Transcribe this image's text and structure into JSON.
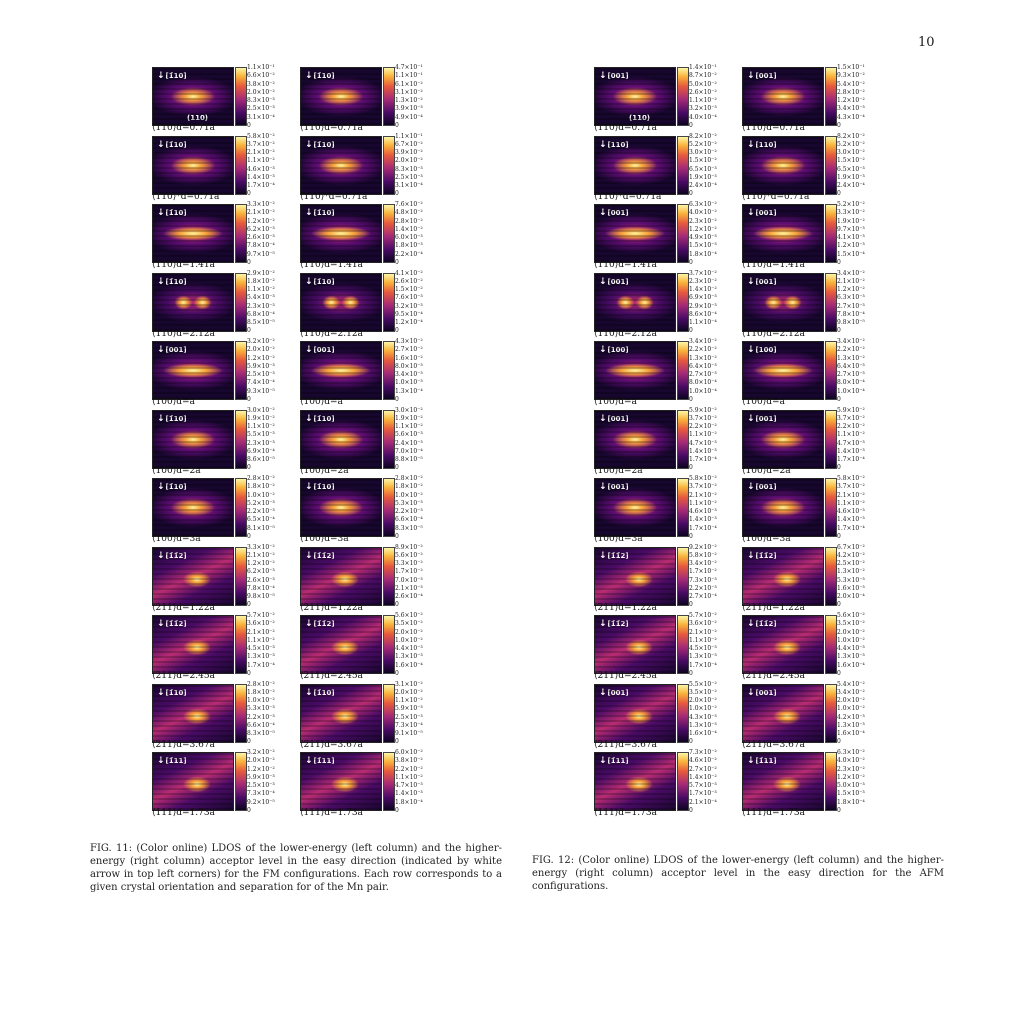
{
  "page_number": "10",
  "fig11": {
    "caption": "FIG. 11: (Color online) LDOS of the lower-energy (left column) and the higher-energy (right column) acceptor level in the easy direction (indicated by white arrow in top left corners) for the FM configurations. Each row corresponds to a given crystal orientation and separation for of the Mn pair.",
    "rows": [
      {
        "left": {
          "dir": "[1̄10]",
          "extra": "[001] [1̄10]",
          "plane": "(110)",
          "caption": "⟨110⟩d=0.71a",
          "ticks": [
            "1.1×10⁻¹",
            "6.6×10⁻²",
            "3.8×10⁻²",
            "2.0×10⁻²",
            "8.3×10⁻³",
            "2.5×10⁻³",
            "3.1×10⁻⁴",
            "0"
          ]
        },
        "right": {
          "dir": "[1̄10]",
          "caption": "⟨110⟩d=0.71a",
          "ticks": [
            "4.7×10⁻¹",
            "1.1×10⁻¹",
            "6.1×10⁻²",
            "3.1×10⁻²",
            "1.3×10⁻²",
            "3.9×10⁻³",
            "4.9×10⁻⁴",
            "0"
          ]
        }
      },
      {
        "left": {
          "dir": "[1̄10]",
          "caption": "⟨110⟩*d=0.71a",
          "ticks": [
            "5.8×10⁻²",
            "3.7×10⁻²",
            "2.1×10⁻²",
            "1.1×10⁻²",
            "4.6×10⁻³",
            "1.4×10⁻³",
            "1.7×10⁻⁴",
            "0"
          ]
        },
        "right": {
          "dir": "[1̄10]",
          "caption": "⟨110⟩*d=0.71a",
          "ticks": [
            "1.1×10⁻¹",
            "6.7×10⁻²",
            "3.9×10⁻²",
            "2.0×10⁻²",
            "8.3×10⁻³",
            "2.5×10⁻³",
            "3.1×10⁻⁴",
            "0"
          ]
        }
      },
      {
        "left": {
          "dir": "[1̄10]",
          "caption": "⟨110⟩d=1.41a",
          "ticks": [
            "3.3×10⁻²",
            "2.1×10⁻²",
            "1.2×10⁻²",
            "6.2×10⁻³",
            "2.6×10⁻³",
            "7.8×10⁻⁴",
            "9.7×10⁻⁵",
            "0"
          ]
        },
        "right": {
          "dir": "[1̄10]",
          "caption": "⟨110⟩d=1.41a",
          "ticks": [
            "7.6×10⁻²",
            "4.8×10⁻²",
            "2.8×10⁻²",
            "1.4×10⁻²",
            "6.0×10⁻³",
            "1.8×10⁻³",
            "2.2×10⁻⁴",
            "0"
          ]
        }
      },
      {
        "left": {
          "dir": "[1̄10]",
          "caption": "⟨110⟩d=2.12a",
          "ticks": [
            "2.9×10⁻²",
            "1.8×10⁻²",
            "1.1×10⁻²",
            "5.4×10⁻³",
            "2.3×10⁻³",
            "6.8×10⁻⁴",
            "8.5×10⁻⁵",
            "0"
          ]
        },
        "right": {
          "dir": "[1̄10]",
          "caption": "⟨110⟩d=2.12a",
          "ticks": [
            "4.1×10⁻²",
            "2.6×10⁻²",
            "1.5×10⁻²",
            "7.6×10⁻³",
            "3.2×10⁻³",
            "9.5×10⁻⁴",
            "1.2×10⁻⁴",
            "0"
          ]
        }
      },
      {
        "left": {
          "dir": "[001]",
          "caption": "⟨100⟩d=a",
          "ticks": [
            "3.2×10⁻²",
            "2.0×10⁻²",
            "1.2×10⁻²",
            "5.9×10⁻³",
            "2.5×10⁻³",
            "7.4×10⁻⁴",
            "9.3×10⁻⁵",
            "0"
          ]
        },
        "right": {
          "dir": "[001]",
          "caption": "⟨100⟩d=a",
          "ticks": [
            "4.3×10⁻²",
            "2.7×10⁻²",
            "1.6×10⁻²",
            "8.0×10⁻³",
            "3.4×10⁻³",
            "1.0×10⁻³",
            "1.3×10⁻⁴",
            "0"
          ]
        }
      },
      {
        "left": {
          "dir": "[1̄10]",
          "caption": "⟨100⟩d=2a",
          "ticks": [
            "3.0×10⁻²",
            "1.9×10⁻²",
            "1.1×10⁻²",
            "5.5×10⁻³",
            "2.3×10⁻³",
            "6.9×10⁻⁴",
            "8.6×10⁻⁵",
            "0"
          ]
        },
        "right": {
          "dir": "[1̄10]",
          "caption": "⟨100⟩d=2a",
          "ticks": [
            "3.0×10⁻²",
            "1.9×10⁻²",
            "1.1×10⁻²",
            "5.6×10⁻³",
            "2.4×10⁻³",
            "7.0×10⁻⁴",
            "8.8×10⁻⁵",
            "0"
          ]
        }
      },
      {
        "left": {
          "dir": "[1̄10]",
          "caption": "⟨100⟩d=3a",
          "ticks": [
            "2.8×10⁻²",
            "1.8×10⁻²",
            "1.0×10⁻²",
            "5.2×10⁻³",
            "2.2×10⁻³",
            "6.5×10⁻⁴",
            "8.1×10⁻⁵",
            "0"
          ]
        },
        "right": {
          "dir": "[1̄10]",
          "caption": "⟨100⟩d=3a",
          "ticks": [
            "2.8×10⁻²",
            "1.8×10⁻²",
            "1.0×10⁻²",
            "5.3×10⁻³",
            "2.2×10⁻³",
            "6.6×10⁻⁴",
            "8.3×10⁻⁵",
            "0"
          ]
        }
      },
      {
        "left": {
          "dir": "[1̄1̄2]",
          "caption": "⟨211⟩d=1.22a",
          "ticks": [
            "3.3×10⁻²",
            "2.1×10⁻²",
            "1.2×10⁻²",
            "6.2×10⁻³",
            "2.6×10⁻³",
            "7.8×10⁻⁴",
            "9.8×10⁻⁵",
            "0"
          ]
        },
        "right": {
          "dir": "[1̄1̄2]",
          "caption": "⟨211⟩d=1.22a",
          "ticks": [
            "8.9×10⁻²",
            "5.6×10⁻²",
            "3.3×10⁻²",
            "1.7×10⁻²",
            "7.0×10⁻³",
            "2.1×10⁻³",
            "2.6×10⁻⁴",
            "0"
          ]
        }
      },
      {
        "left": {
          "dir": "[1̄1̄2]",
          "caption": "⟨211⟩d=2.45a",
          "ticks": [
            "5.7×10⁻²",
            "3.6×10⁻²",
            "2.1×10⁻²",
            "1.1×10⁻²",
            "4.5×10⁻³",
            "1.3×10⁻³",
            "1.7×10⁻⁴",
            "0"
          ]
        },
        "right": {
          "dir": "[1̄1̄2]",
          "caption": "⟨211⟩d=2.45a",
          "ticks": [
            "5.6×10⁻²",
            "3.5×10⁻²",
            "2.0×10⁻²",
            "1.0×10⁻²",
            "4.4×10⁻³",
            "1.3×10⁻³",
            "1.6×10⁻⁴",
            "0"
          ]
        }
      },
      {
        "left": {
          "dir": "[1̄10]",
          "caption": "⟨211⟩d=3.67a",
          "ticks": [
            "2.8×10⁻²",
            "1.8×10⁻²",
            "1.0×10⁻²",
            "5.3×10⁻³",
            "2.2×10⁻³",
            "6.6×10⁻⁴",
            "8.3×10⁻⁵",
            "0"
          ]
        },
        "right": {
          "dir": "[1̄10]",
          "caption": "⟨211⟩d=3.67a",
          "ticks": [
            "3.1×10⁻²",
            "2.0×10⁻²",
            "1.1×10⁻²",
            "5.9×10⁻³",
            "2.5×10⁻³",
            "7.3×10⁻⁴",
            "9.1×10⁻⁵",
            "0"
          ]
        }
      },
      {
        "left": {
          "dir": "[1̄11]",
          "caption": "⟨111⟩d=1.73a",
          "ticks": [
            "3.2×10⁻²",
            "2.0×10⁻²",
            "1.2×10⁻²",
            "5.9×10⁻³",
            "2.5×10⁻³",
            "7.3×10⁻⁴",
            "9.2×10⁻⁵",
            "0"
          ]
        },
        "right": {
          "dir": "[1̄11]",
          "caption": "⟨111⟩d=1.73a",
          "ticks": [
            "6.0×10⁻²",
            "3.8×10⁻²",
            "2.2×10⁻²",
            "1.1×10⁻²",
            "4.7×10⁻³",
            "1.4×10⁻³",
            "1.8×10⁻⁴",
            "0"
          ]
        }
      }
    ]
  },
  "fig12": {
    "caption": "FIG. 12: (Color online) LDOS of the lower-energy (left column) and the higher-energy (right column) acceptor level in the easy direction for the AFM configurations.",
    "rows": [
      {
        "left": {
          "dir": "[001]",
          "extra": "[001] [1̄10]",
          "plane": "(110)",
          "caption": "⟨110⟩d=0.71a",
          "ticks": [
            "1.4×10⁻¹",
            "8.7×10⁻²",
            "5.0×10⁻²",
            "2.6×10⁻²",
            "1.1×10⁻²",
            "3.2×10⁻³",
            "4.0×10⁻⁴",
            "0"
          ]
        },
        "right": {
          "dir": "[001]",
          "caption": "⟨110⟩d=0.71a",
          "ticks": [
            "1.5×10⁻¹",
            "9.3×10⁻²",
            "5.4×10⁻²",
            "2.8×10⁻²",
            "1.2×10⁻²",
            "3.4×10⁻³",
            "4.3×10⁻⁴",
            "0"
          ]
        }
      },
      {
        "left": {
          "dir": "[110]",
          "caption": "⟨110⟩*d=0.71a",
          "ticks": [
            "8.2×10⁻²",
            "5.2×10⁻²",
            "3.0×10⁻²",
            "1.5×10⁻²",
            "6.5×10⁻³",
            "1.9×10⁻³",
            "2.4×10⁻⁴",
            "0"
          ]
        },
        "right": {
          "dir": "[110]",
          "caption": "⟨110⟩*d=0.71a",
          "ticks": [
            "8.2×10⁻²",
            "5.2×10⁻²",
            "3.0×10⁻²",
            "1.5×10⁻²",
            "6.5×10⁻³",
            "1.9×10⁻³",
            "2.4×10⁻⁴",
            "0"
          ]
        }
      },
      {
        "left": {
          "dir": "[001]",
          "caption": "⟨110⟩d=1.41a",
          "ticks": [
            "6.3×10⁻²",
            "4.0×10⁻²",
            "2.3×10⁻²",
            "1.2×10⁻²",
            "4.9×10⁻³",
            "1.5×10⁻³",
            "1.8×10⁻⁴",
            "0"
          ]
        },
        "right": {
          "dir": "[001]",
          "caption": "⟨110⟩d=1.41a",
          "ticks": [
            "5.2×10⁻²",
            "3.3×10⁻²",
            "1.9×10⁻²",
            "9.7×10⁻³",
            "4.1×10⁻³",
            "1.2×10⁻³",
            "1.5×10⁻⁴",
            "0"
          ]
        }
      },
      {
        "left": {
          "dir": "[001]",
          "caption": "⟨110⟩d=2.12a",
          "ticks": [
            "3.7×10⁻²",
            "2.3×10⁻²",
            "1.4×10⁻²",
            "6.9×10⁻³",
            "2.9×10⁻³",
            "8.6×10⁻⁴",
            "1.1×10⁻⁴",
            "0"
          ]
        },
        "right": {
          "dir": "[001]",
          "caption": "⟨110⟩d=2.12a",
          "ticks": [
            "3.4×10⁻²",
            "2.1×10⁻²",
            "1.2×10⁻²",
            "6.3×10⁻³",
            "2.7×10⁻³",
            "7.8×10⁻⁴",
            "9.8×10⁻⁵",
            "0"
          ]
        }
      },
      {
        "left": {
          "dir": "[100]",
          "caption": "⟨100⟩d=a",
          "ticks": [
            "3.4×10⁻²",
            "2.2×10⁻²",
            "1.3×10⁻²",
            "6.4×10⁻³",
            "2.7×10⁻³",
            "8.0×10⁻⁴",
            "1.0×10⁻⁴",
            "0"
          ]
        },
        "right": {
          "dir": "[100]",
          "caption": "⟨100⟩d=a",
          "ticks": [
            "3.4×10⁻²",
            "2.2×10⁻²",
            "1.3×10⁻²",
            "6.4×10⁻³",
            "2.7×10⁻³",
            "8.0×10⁻⁴",
            "1.0×10⁻⁴",
            "0"
          ]
        }
      },
      {
        "left": {
          "dir": "[001]",
          "caption": "⟨100⟩d=2a",
          "ticks": [
            "5.9×10⁻²",
            "3.7×10⁻²",
            "2.2×10⁻²",
            "1.1×10⁻²",
            "4.7×10⁻³",
            "1.4×10⁻³",
            "1.7×10⁻⁴",
            "0"
          ]
        },
        "right": {
          "dir": "[001]",
          "caption": "⟨100⟩d=2a",
          "ticks": [
            "5.9×10⁻²",
            "3.7×10⁻²",
            "2.2×10⁻²",
            "1.1×10⁻²",
            "4.7×10⁻³",
            "1.4×10⁻³",
            "1.7×10⁻⁴",
            "0"
          ]
        }
      },
      {
        "left": {
          "dir": "[001]",
          "caption": "⟨100⟩d=3a",
          "ticks": [
            "5.8×10⁻²",
            "3.7×10⁻²",
            "2.1×10⁻²",
            "1.1×10⁻²",
            "4.6×10⁻³",
            "1.4×10⁻³",
            "1.7×10⁻⁴",
            "0"
          ]
        },
        "right": {
          "dir": "[001]",
          "caption": "⟨100⟩d=3a",
          "ticks": [
            "5.8×10⁻²",
            "3.7×10⁻²",
            "2.1×10⁻²",
            "1.1×10⁻²",
            "4.6×10⁻³",
            "1.4×10⁻³",
            "1.7×10⁻⁴",
            "0"
          ]
        }
      },
      {
        "left": {
          "dir": "[1̄1̄2]",
          "caption": "⟨211⟩d=1.22a",
          "ticks": [
            "9.2×10⁻²",
            "5.8×10⁻²",
            "3.4×10⁻²",
            "1.7×10⁻²",
            "7.3×10⁻³",
            "2.2×10⁻³",
            "2.7×10⁻⁴",
            "0"
          ]
        },
        "right": {
          "dir": "[1̄1̄2]",
          "caption": "⟨211⟩d=1.22a",
          "ticks": [
            "6.7×10⁻²",
            "4.2×10⁻²",
            "2.5×10⁻²",
            "1.3×10⁻²",
            "5.3×10⁻³",
            "1.6×10⁻³",
            "2.0×10⁻⁴",
            "0"
          ]
        }
      },
      {
        "left": {
          "dir": "[1̄1̄2]",
          "caption": "⟨211⟩d=2.45a",
          "ticks": [
            "5.7×10⁻²",
            "3.6×10⁻²",
            "2.1×10⁻²",
            "1.1×10⁻²",
            "4.5×10⁻³",
            "1.3×10⁻³",
            "1.7×10⁻⁴",
            "0"
          ]
        },
        "right": {
          "dir": "[1̄1̄2]",
          "caption": "⟨211⟩d=2.45a",
          "ticks": [
            "5.6×10⁻²",
            "3.5×10⁻²",
            "2.0×10⁻²",
            "1.0×10⁻²",
            "4.4×10⁻³",
            "1.3×10⁻³",
            "1.6×10⁻⁴",
            "0"
          ]
        }
      },
      {
        "left": {
          "dir": "[001]",
          "caption": "⟨211⟩d=3.67a",
          "ticks": [
            "5.5×10⁻²",
            "3.5×10⁻²",
            "2.0×10⁻²",
            "1.0×10⁻²",
            "4.3×10⁻³",
            "1.3×10⁻³",
            "1.6×10⁻⁴",
            "0"
          ]
        },
        "right": {
          "dir": "[001]",
          "caption": "⟨211⟩d=3.67a",
          "ticks": [
            "5.4×10⁻²",
            "3.4×10⁻²",
            "2.0×10⁻²",
            "1.0×10⁻²",
            "4.2×10⁻³",
            "1.3×10⁻³",
            "1.6×10⁻⁴",
            "0"
          ]
        }
      },
      {
        "left": {
          "dir": "[1̄11]",
          "caption": "⟨111⟩d=1.73a",
          "ticks": [
            "7.3×10⁻²",
            "4.6×10⁻²",
            "2.7×10⁻²",
            "1.4×10⁻²",
            "5.7×10⁻³",
            "1.7×10⁻³",
            "2.1×10⁻⁴",
            "0"
          ]
        },
        "right": {
          "dir": "[1̄11]",
          "caption": "⟨111⟩d=1.73a",
          "ticks": [
            "6.3×10⁻²",
            "4.0×10⁻²",
            "2.3×10⁻²",
            "1.2×10⁻²",
            "5.0×10⁻³",
            "1.5×10⁻³",
            "1.8×10⁻⁴",
            "0"
          ]
        }
      }
    ]
  }
}
